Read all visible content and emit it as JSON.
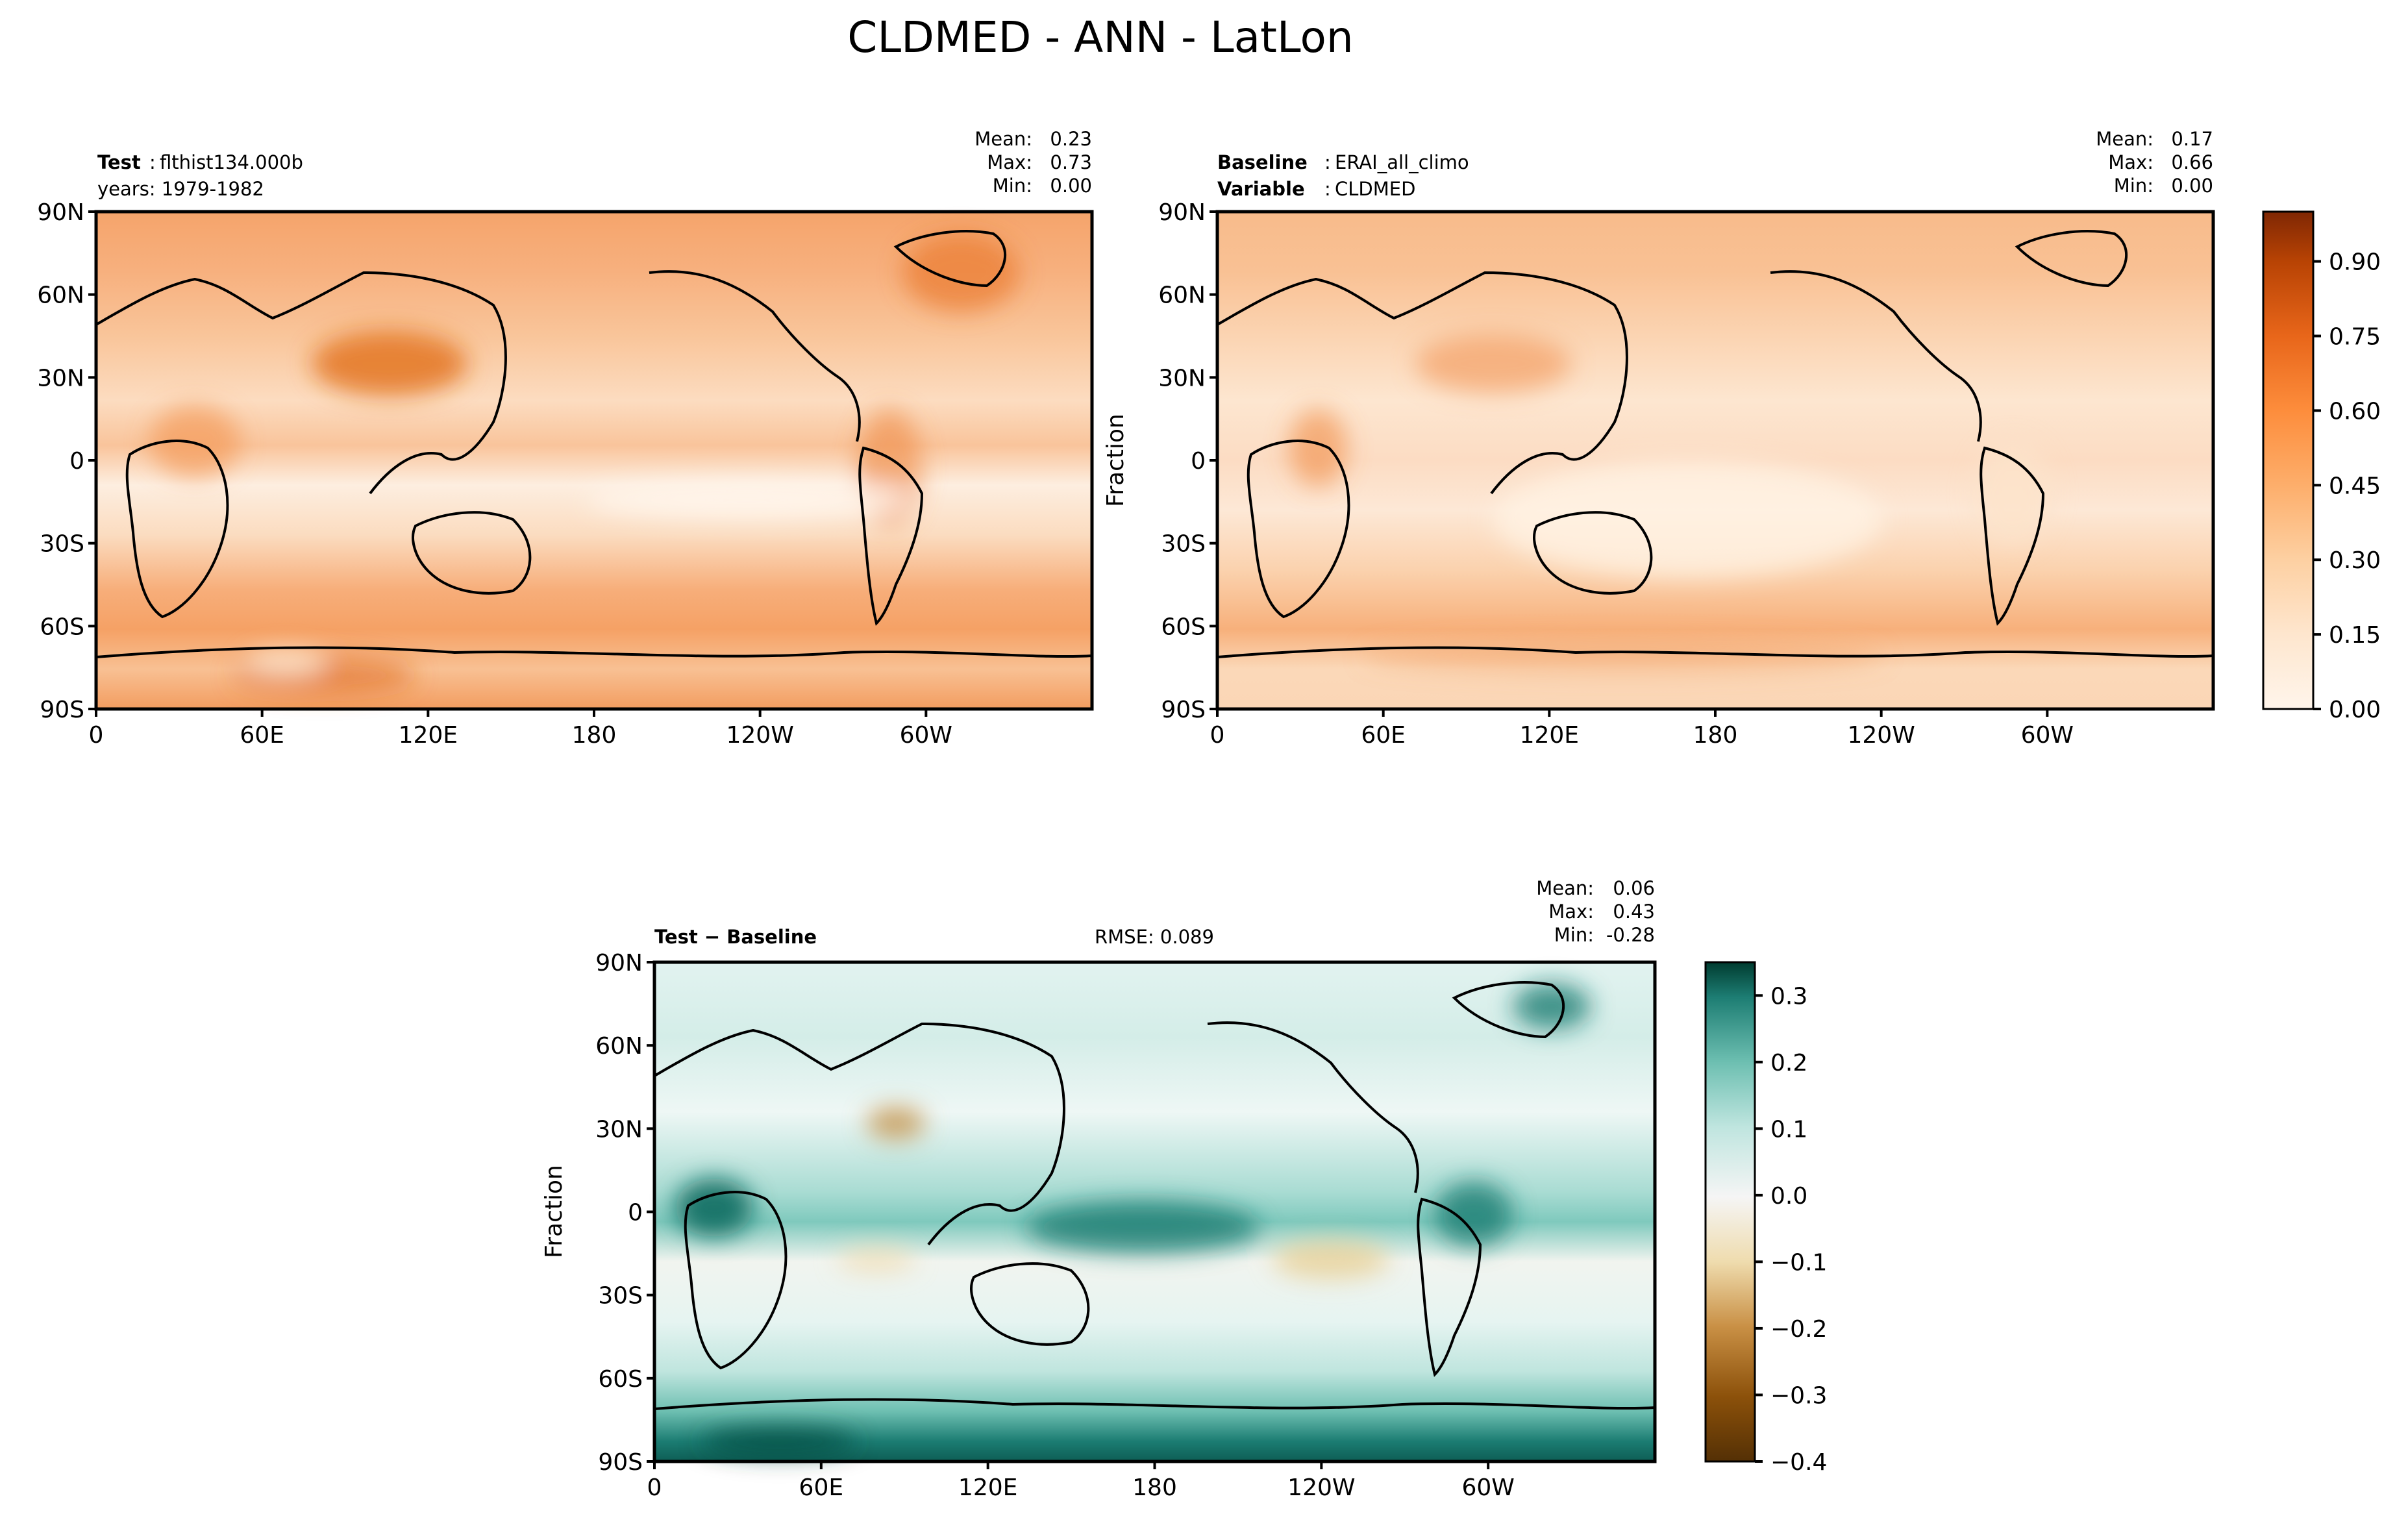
{
  "figure": {
    "title": "CLDMED - ANN - LatLon"
  },
  "chart_data": [
    {
      "type": "heatmap",
      "panel": "test",
      "label_bold": "Test",
      "label_value": "flthist134.000b",
      "subline": "years: 1979-1982",
      "stats": {
        "mean": "0.23",
        "max": "0.73",
        "min": "0.00"
      },
      "stat_labels": {
        "mean": "Mean:",
        "max": "Max:",
        "min": "Min:"
      },
      "ylabel": "",
      "xticks": [
        "0",
        "60E",
        "120E",
        "180",
        "120W",
        "60W"
      ],
      "yticks": [
        "90N",
        "60N",
        "30N",
        "0",
        "30S",
        "60S",
        "90S"
      ],
      "xlim": [
        0,
        360
      ],
      "ylim": [
        -90,
        90
      ]
    },
    {
      "type": "heatmap",
      "panel": "baseline",
      "label_bold": "Baseline",
      "label_value": "ERAI_all_climo",
      "label2_bold": "Variable",
      "label2_value": "CLDMED",
      "stats": {
        "mean": "0.17",
        "max": "0.66",
        "min": "0.00"
      },
      "stat_labels": {
        "mean": "Mean:",
        "max": "Max:",
        "min": "Min:"
      },
      "ylabel": "Fraction",
      "xticks": [
        "0",
        "60E",
        "120E",
        "180",
        "120W",
        "60W"
      ],
      "yticks": [
        "90N",
        "60N",
        "30N",
        "0",
        "30S",
        "60S",
        "90S"
      ],
      "xlim": [
        0,
        360
      ],
      "ylim": [
        -90,
        90
      ],
      "colorbar": {
        "ticks": [
          "0.00",
          "0.15",
          "0.30",
          "0.45",
          "0.60",
          "0.75",
          "0.90"
        ],
        "range": [
          0,
          1
        ],
        "levels": 20,
        "colormap": [
          "#fff5eb",
          "#fee6ce",
          "#fdd0a2",
          "#fdae6b",
          "#fd8d3c",
          "#f16913",
          "#d94801",
          "#a63603",
          "#7f2704"
        ]
      }
    },
    {
      "type": "heatmap",
      "panel": "difference",
      "label_bold": "Test − Baseline",
      "center_text": "RMSE: 0.089",
      "stats": {
        "mean": "0.06",
        "max": "0.43",
        "min": "-0.28"
      },
      "stat_labels": {
        "mean": "Mean:",
        "max": "Max:",
        "min": "Min:"
      },
      "ylabel": "Fraction",
      "xticks": [
        "0",
        "60E",
        "120E",
        "180",
        "120W",
        "60W"
      ],
      "yticks": [
        "90N",
        "60N",
        "30N",
        "0",
        "30S",
        "60S",
        "90S"
      ],
      "xlim": [
        0,
        360
      ],
      "ylim": [
        -90,
        90
      ],
      "colorbar": {
        "ticks": [
          "0.3",
          "0.2",
          "0.1",
          "0.0",
          "−0.1",
          "−0.2",
          "−0.3",
          "−0.4"
        ],
        "range": [
          -0.4,
          0.35
        ],
        "levels": 15,
        "colormap": [
          "#543005",
          "#8c510a",
          "#bf812d",
          "#dfc27d",
          "#f6e8c3",
          "#f5f5f5",
          "#c7eae5",
          "#80cdc1",
          "#35978f",
          "#01665e",
          "#003c30"
        ]
      }
    }
  ]
}
